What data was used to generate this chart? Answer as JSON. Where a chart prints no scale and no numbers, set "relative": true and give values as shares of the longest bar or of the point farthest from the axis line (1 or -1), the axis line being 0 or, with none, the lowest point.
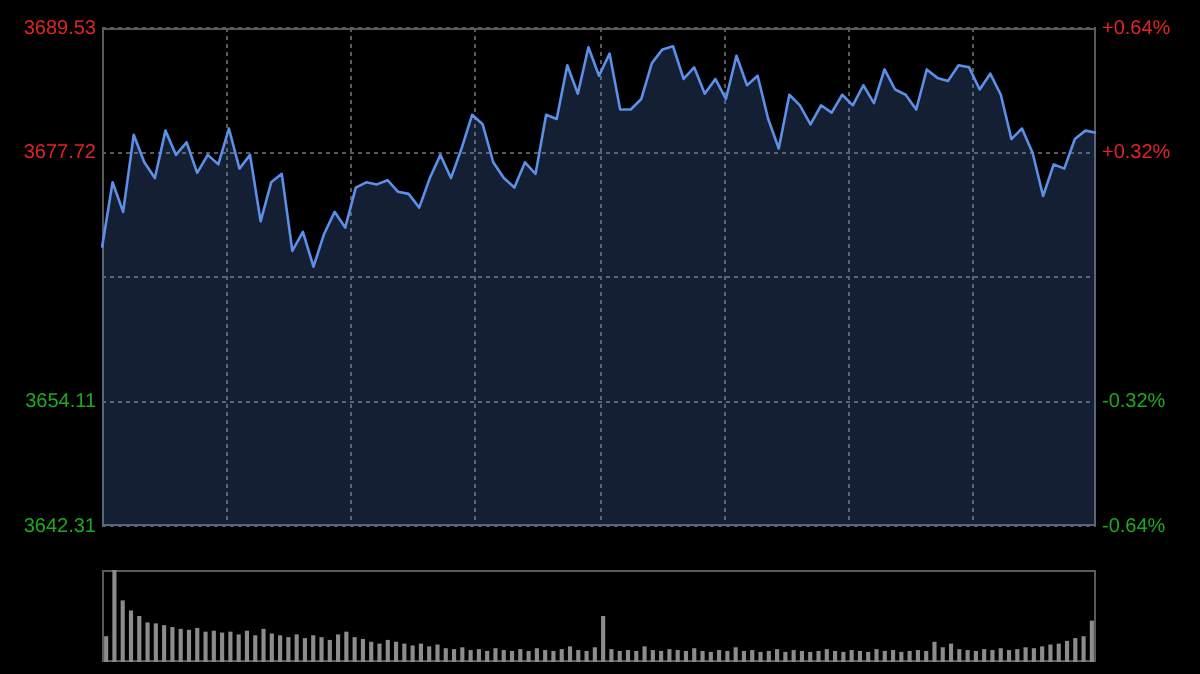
{
  "chart_data": [
    {
      "type": "area",
      "categories": [
        null,
        null,
        null,
        null,
        null,
        null,
        null,
        null,
        null,
        null,
        null,
        null,
        null,
        null,
        null,
        null,
        null,
        null,
        null,
        null,
        null,
        null,
        null,
        null,
        null,
        null,
        null,
        null,
        null,
        null,
        null,
        null,
        null,
        null,
        null,
        null,
        null,
        null,
        null,
        null,
        null,
        null,
        null,
        null,
        null,
        null,
        null,
        null,
        null,
        null,
        null,
        null,
        null,
        null,
        null,
        null,
        null,
        null,
        null,
        null,
        null,
        null,
        null,
        null,
        null,
        null,
        null,
        null,
        null,
        null,
        null,
        null,
        null,
        null,
        null,
        null,
        null,
        null,
        null,
        null,
        null,
        null,
        null,
        null,
        null,
        null,
        null,
        null,
        null,
        null,
        null,
        null,
        null,
        null,
        null
      ],
      "series": [
        {
          "color": "#5b8fe8",
          "values": [
            3668.7,
            3674.9,
            3672.1,
            3679.4,
            3676.8,
            3675.3,
            3679.8,
            3677.5,
            3678.7,
            3675.8,
            3677.5,
            3676.6,
            3680.0,
            3676.2,
            3677.5,
            3671.2,
            3674.9,
            3675.7,
            3668.4,
            3670.2,
            3666.9,
            3670.0,
            3672.1,
            3670.6,
            3674.4,
            3674.9,
            3674.7,
            3675.1,
            3674.0,
            3673.8,
            3672.5,
            3675.3,
            3677.5,
            3675.3,
            3678.1,
            3681.3,
            3680.4,
            3676.8,
            3675.3,
            3674.4,
            3676.8,
            3675.7,
            3681.3,
            3680.9,
            3686.0,
            3683.3,
            3687.7,
            3685.0,
            3687.1,
            3681.8,
            3681.8,
            3682.8,
            3686.2,
            3687.5,
            3687.8,
            3684.7,
            3685.8,
            3683.3,
            3684.7,
            3682.8,
            3686.9,
            3684.1,
            3685.0,
            3680.9,
            3678.1,
            3683.2,
            3682.2,
            3680.4,
            3682.2,
            3681.5,
            3683.2,
            3682.2,
            3684.1,
            3682.4,
            3685.6,
            3683.7,
            3683.2,
            3681.8,
            3685.6,
            3684.8,
            3684.5,
            3686.0,
            3685.8,
            3683.7,
            3685.2,
            3683.2,
            3679.0,
            3680.0,
            3677.7,
            3673.6,
            3676.6,
            3676.2,
            3679.0,
            3679.8,
            3679.6
          ]
        }
      ],
      "ylim": [
        3642.31,
        3689.53
      ],
      "yticks": [
        3642.31,
        3654.11,
        {
          "value": 3665.92,
          "label": null
        },
        3677.72,
        3689.53
      ],
      "y2lim": [
        -0.64,
        0.64
      ],
      "y2ticks": [
        {
          "value": -0.64,
          "label": "-0.64%"
        },
        {
          "value": -0.32,
          "label": "-0.32%"
        },
        {
          "value": 0,
          "label": null
        },
        {
          "value": 0.32,
          "label": "+0.32%"
        },
        {
          "value": 0.64,
          "label": "+0.64%"
        }
      ],
      "grid": true,
      "marker": "none"
    },
    {
      "type": "bar",
      "relative": true,
      "categories": [
        null,
        null,
        null,
        null,
        null,
        null,
        null,
        null,
        null,
        null,
        null,
        null,
        null,
        null,
        null,
        null,
        null,
        null,
        null,
        null,
        null,
        null,
        null,
        null,
        null,
        null,
        null,
        null,
        null,
        null,
        null,
        null,
        null,
        null,
        null,
        null,
        null,
        null,
        null,
        null,
        null,
        null,
        null,
        null,
        null,
        null,
        null,
        null,
        null,
        null,
        null,
        null,
        null,
        null,
        null,
        null,
        null,
        null,
        null,
        null,
        null,
        null,
        null,
        null,
        null,
        null,
        null,
        null,
        null,
        null,
        null,
        null,
        null,
        null,
        null,
        null,
        null,
        null,
        null,
        null,
        null,
        null,
        null,
        null,
        null,
        null,
        null,
        null,
        null,
        null,
        null,
        null,
        null,
        null,
        null,
        null,
        null,
        null,
        null,
        null,
        null,
        null,
        null,
        null,
        null,
        null,
        null,
        null,
        null,
        null,
        null,
        null,
        null,
        null,
        null,
        null,
        null,
        null,
        null,
        null
      ],
      "color": "#8c8c8c",
      "values": [
        0.28,
        1,
        0.67,
        0.56,
        0.5,
        0.43,
        0.42,
        0.4,
        0.38,
        0.36,
        0.35,
        0.37,
        0.33,
        0.34,
        0.32,
        0.33,
        0.3,
        0.34,
        0.29,
        0.36,
        0.31,
        0.29,
        0.27,
        0.3,
        0.26,
        0.29,
        0.27,
        0.24,
        0.3,
        0.33,
        0.27,
        0.25,
        0.22,
        0.2,
        0.24,
        0.22,
        0.2,
        0.18,
        0.2,
        0.17,
        0.19,
        0.15,
        0.14,
        0.16,
        0.13,
        0.14,
        0.12,
        0.15,
        0.13,
        0.12,
        0.14,
        0.12,
        0.15,
        0.13,
        0.12,
        0.14,
        0.17,
        0.13,
        0.12,
        0.16,
        0.5,
        0.14,
        0.12,
        0.13,
        0.12,
        0.17,
        0.13,
        0.12,
        0.14,
        0.13,
        0.12,
        0.15,
        0.12,
        0.11,
        0.13,
        0.12,
        0.16,
        0.12,
        0.13,
        0.11,
        0.12,
        0.14,
        0.11,
        0.13,
        0.12,
        0.11,
        0.12,
        0.14,
        0.12,
        0.11,
        0.13,
        0.12,
        0.11,
        0.14,
        0.12,
        0.13,
        0.11,
        0.12,
        0.13,
        0.12,
        0.22,
        0.16,
        0.2,
        0.14,
        0.13,
        0.12,
        0.14,
        0.13,
        0.15,
        0.13,
        0.14,
        0.16,
        0.15,
        0.17,
        0.19,
        0.2,
        0.23,
        0.26,
        0.28,
        0.45
      ]
    }
  ]
}
